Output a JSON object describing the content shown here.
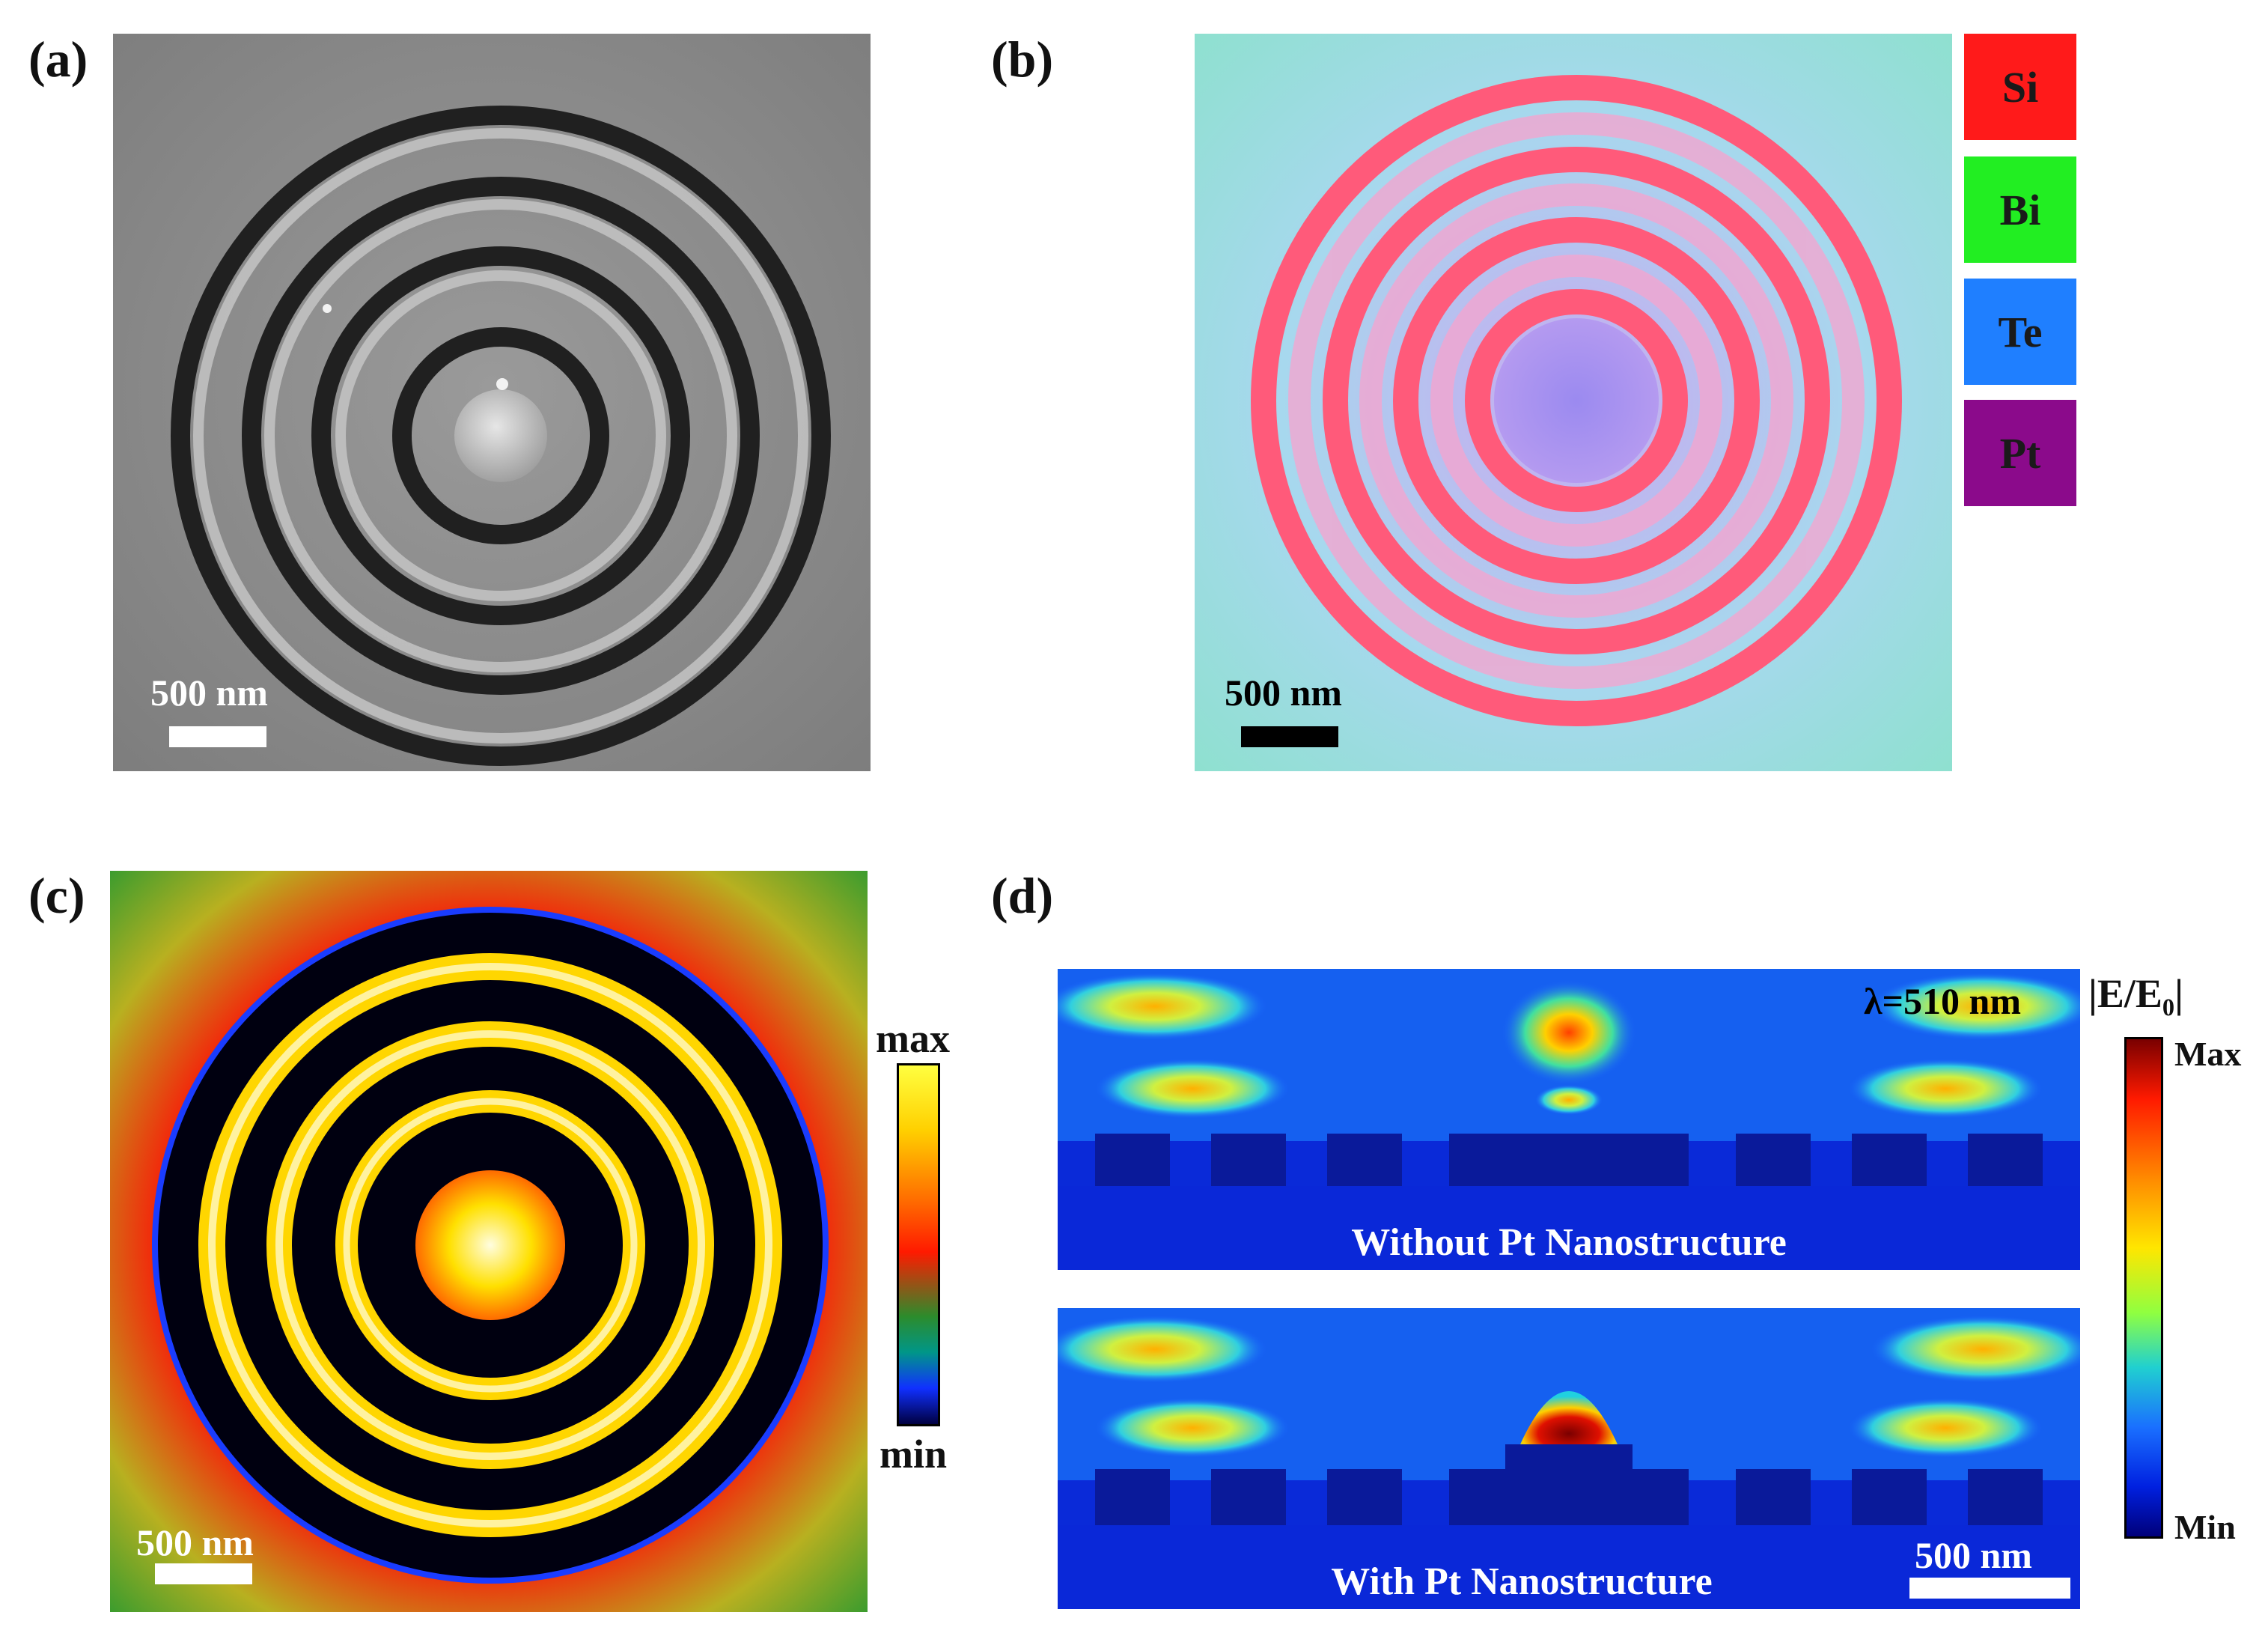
{
  "panels": {
    "a": {
      "label": "(a)",
      "scale_label": "500 nm"
    },
    "b": {
      "label": "(b)",
      "scale_label": "500 nm",
      "legend": [
        {
          "element": "Si",
          "color": "#ff1a1a"
        },
        {
          "element": "Bi",
          "color": "#22ee22"
        },
        {
          "element": "Te",
          "color": "#1f7fff"
        },
        {
          "element": "Pt",
          "color": "#8b0a8b"
        }
      ]
    },
    "c": {
      "label": "(c)",
      "scale_label": "500 nm",
      "colorbar": {
        "max_label": "max",
        "min_label": "min"
      }
    },
    "d": {
      "label": "(d)",
      "wavelength_label": "λ=510 nm",
      "top_caption": "Without Pt Nanostructure",
      "bottom_caption": "With Pt Nanostructure",
      "scale_label": "500 nm",
      "colorbar": {
        "title": "|E/E₀|",
        "max_label": "Max",
        "min_label": "Min"
      }
    }
  },
  "colors": {
    "sem_gray": "#8c8c8c",
    "sem_ring": "#1e1e1e",
    "eds_background": "#8fe0e8",
    "eds_ring": "#ff4d6d",
    "map_background": "#e02a10",
    "map_ring_bright": "#ffd400",
    "field_background": "#0a28d8"
  }
}
